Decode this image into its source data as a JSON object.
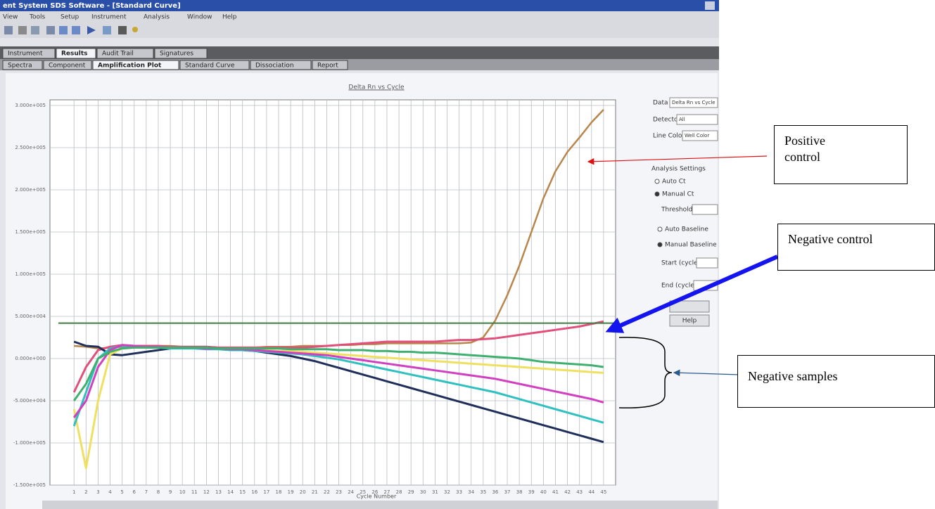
{
  "ui": {
    "window_title": "ent System SDS Software - [Standard Curve]",
    "menu": [
      "View",
      "Tools",
      "Setup",
      "Instrument",
      "Analysis",
      "Window",
      "Help"
    ],
    "tabs": [
      "Instrument",
      "Results",
      "Audit Trail",
      "Signatures"
    ],
    "subtabs": [
      "Spectra",
      "Component",
      "Amplification Plot",
      "Standard Curve",
      "Dissociation",
      "Report"
    ],
    "panel": {
      "data_label": "Data",
      "data_value": "Delta Rn vs Cycle",
      "detector_label": "Detector",
      "detector_value": "All",
      "line_color_label": "Line Color",
      "line_color_value": "Well Color",
      "analysis_settings": "Analysis Settings",
      "auto_ct": "Auto Ct",
      "manual_ct": "Manual Ct",
      "threshold": "Threshold",
      "auto_baseline": "Auto Baseline",
      "manual_baseline": "Manual Baseline",
      "start_cycle": "Start (cycle)",
      "end_cycle": "End (cycle)",
      "help": "Help"
    }
  },
  "annotations": {
    "positive_control": "Positive control",
    "negative_control": "Negative control",
    "negative_samples": "Negative samples"
  },
  "chart_data": {
    "type": "line",
    "title": "Delta Rn vs Cycle",
    "x_label": "Cycle Number",
    "x": [
      1,
      2,
      3,
      4,
      5,
      6,
      7,
      8,
      9,
      10,
      11,
      12,
      13,
      14,
      15,
      16,
      17,
      18,
      19,
      20,
      21,
      22,
      23,
      24,
      25,
      26,
      27,
      28,
      29,
      30,
      31,
      32,
      33,
      34,
      35,
      36,
      37,
      38,
      39,
      40,
      41,
      42,
      43,
      44,
      45
    ],
    "xticks": [
      1,
      2,
      3,
      4,
      5,
      6,
      7,
      8,
      9,
      10,
      11,
      12,
      13,
      14,
      15,
      16,
      17,
      18,
      19,
      20,
      21,
      22,
      23,
      24,
      25,
      26,
      27,
      28,
      29,
      30,
      31,
      32,
      33,
      34,
      35,
      36,
      37,
      38,
      39,
      40,
      41,
      42,
      43,
      44,
      45
    ],
    "xlim": [
      -1,
      46
    ],
    "ylim": [
      -150000,
      300000
    ],
    "yticks": [
      {
        "value": -150000,
        "label": "-1.500e+005"
      },
      {
        "value": -100000,
        "label": "-1.000e+005"
      },
      {
        "value": -50000,
        "label": "-5.000e+004"
      },
      {
        "value": 0,
        "label": "0.000e+000"
      },
      {
        "value": 50000,
        "label": "5.000e+004"
      },
      {
        "value": 100000,
        "label": "1.000e+005"
      },
      {
        "value": 150000,
        "label": "1.500e+005"
      },
      {
        "value": 200000,
        "label": "2.000e+005"
      },
      {
        "value": 250000,
        "label": "2.500e+005"
      },
      {
        "value": 300000,
        "label": "3.000e+005"
      }
    ],
    "grid": true,
    "threshold": 42000,
    "threshold_color": "#3d7d45",
    "series": [
      {
        "color": "#b8864b",
        "values": [
          15000,
          14000,
          12000,
          13000,
          14000,
          15000,
          15000,
          15000,
          15000,
          14000,
          14000,
          14000,
          13000,
          13000,
          13000,
          13000,
          14000,
          14000,
          14000,
          15000,
          15000,
          15000,
          16000,
          16000,
          17000,
          17000,
          18000,
          18000,
          18000,
          18000,
          18000,
          18000,
          18000,
          19000,
          25000,
          45000,
          75000,
          110000,
          150000,
          190000,
          222000,
          245000,
          262000,
          280000,
          295000
        ]
      },
      {
        "color": "#e0507a",
        "values": [
          -40000,
          -10000,
          10000,
          14000,
          16000,
          15000,
          15000,
          15000,
          14000,
          14000,
          14000,
          14000,
          13000,
          13000,
          13000,
          13000,
          13000,
          13000,
          13000,
          13000,
          14000,
          15000,
          16000,
          17000,
          18000,
          19000,
          20000,
          20000,
          20000,
          20000,
          20000,
          21000,
          22000,
          22000,
          23000,
          24000,
          26000,
          28000,
          30000,
          32000,
          34000,
          36000,
          38000,
          41000,
          44000
        ]
      },
      {
        "color": "#1f2f5a",
        "values": [
          20000,
          15000,
          14000,
          5000,
          4000,
          6000,
          8000,
          10000,
          12000,
          13000,
          13000,
          13000,
          12000,
          11000,
          10000,
          9000,
          7000,
          5000,
          3000,
          0,
          -3000,
          -7000,
          -11000,
          -15000,
          -19000,
          -23000,
          -27000,
          -31000,
          -35000,
          -39000,
          -43000,
          -47000,
          -51000,
          -55000,
          -59000,
          -63000,
          -67000,
          -71000,
          -75000,
          -79000,
          -83000,
          -87000,
          -91000,
          -95000,
          -99000
        ]
      },
      {
        "color": "#efe060",
        "values": [
          -60000,
          -130000,
          -50000,
          5000,
          12000,
          13000,
          13000,
          13000,
          13000,
          12000,
          12000,
          12000,
          11000,
          11000,
          10000,
          10000,
          10000,
          9000,
          9000,
          8000,
          7000,
          6000,
          5000,
          4000,
          3000,
          2000,
          1000,
          0,
          -1000,
          -2000,
          -3000,
          -4000,
          -5000,
          -6000,
          -7000,
          -8000,
          -9000,
          -10000,
          -11000,
          -12000,
          -13000,
          -14000,
          -15000,
          -16000,
          -17000
        ]
      },
      {
        "color": "#30c0c0",
        "values": [
          -80000,
          -40000,
          0,
          12000,
          15000,
          14000,
          13000,
          13000,
          12000,
          12000,
          12000,
          11000,
          11000,
          10000,
          10000,
          9000,
          8000,
          7000,
          6000,
          5000,
          3000,
          1000,
          -1000,
          -4000,
          -7000,
          -10000,
          -13000,
          -16000,
          -19000,
          -22000,
          -25000,
          -28000,
          -31000,
          -34000,
          -37000,
          -40000,
          -44000,
          -48000,
          -52000,
          -56000,
          -60000,
          -64000,
          -68000,
          -72000,
          -76000
        ]
      },
      {
        "color": "#d040c0",
        "values": [
          -70000,
          -50000,
          -10000,
          10000,
          16000,
          15000,
          14000,
          14000,
          13000,
          13000,
          13000,
          12000,
          12000,
          11000,
          11000,
          10000,
          9000,
          8000,
          7000,
          6000,
          5000,
          4000,
          2000,
          0,
          -2000,
          -4000,
          -6000,
          -8000,
          -10000,
          -12000,
          -14000,
          -16000,
          -18000,
          -20000,
          -22000,
          -24000,
          -27000,
          -30000,
          -33000,
          -36000,
          -39000,
          -42000,
          -45000,
          -48000,
          -52000
        ]
      },
      {
        "color": "#40b070",
        "values": [
          -50000,
          -30000,
          0,
          8000,
          12000,
          13000,
          13000,
          13000,
          13000,
          13000,
          13000,
          13000,
          12000,
          12000,
          12000,
          12000,
          12000,
          12000,
          11000,
          11000,
          11000,
          11000,
          10000,
          10000,
          10000,
          9000,
          9000,
          8000,
          8000,
          7000,
          7000,
          6000,
          5000,
          4000,
          3000,
          2000,
          1000,
          0,
          -2000,
          -4000,
          -5000,
          -6000,
          -7000,
          -8000,
          -10000
        ]
      }
    ]
  }
}
